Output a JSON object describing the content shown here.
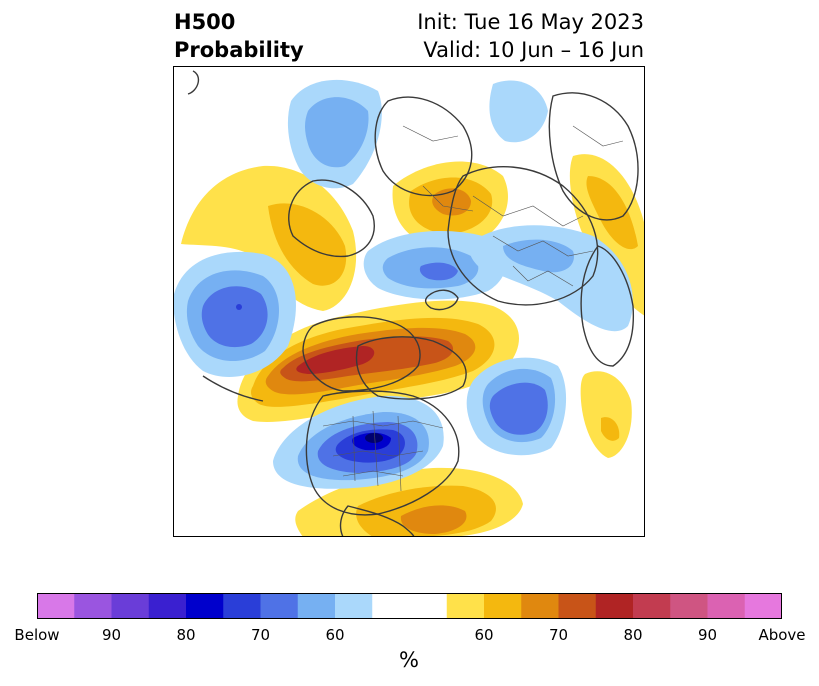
{
  "title": {
    "left_line1": "H500",
    "left_line2": "Probability",
    "right_line1": "Init: Tue 16 May 2023",
    "right_line2": "Valid: 10 Jun – 16 Jun"
  },
  "colorbar": {
    "unit_label": "%",
    "colors": [
      "#d878e8",
      "#9a55e0",
      "#6a3dd8",
      "#3a20d0",
      "#0000cc",
      "#2a3ed8",
      "#4f72e6",
      "#76b0f2",
      "#aad8fb",
      "#ffffff",
      "#ffffff",
      "#ffe14a",
      "#f4b80f",
      "#e0880f",
      "#c85418",
      "#b02424",
      "#c23c50",
      "#cf5582",
      "#db62b2",
      "#e678de"
    ],
    "ticks": [
      "Below",
      "90",
      "80",
      "70",
      "60",
      "60",
      "70",
      "80",
      "90",
      "Above"
    ]
  },
  "colors": {
    "above_60": "#ffe14a",
    "above_65": "#f4b80f",
    "above_70": "#e0880f",
    "above_75": "#c85418",
    "above_80": "#b02424",
    "below_60": "#aad8fb",
    "below_65": "#76b0f2",
    "below_70": "#4f72e6",
    "below_75": "#2a3ed8",
    "below_80": "#0000cc",
    "coastline": "#3a3a3a"
  }
}
